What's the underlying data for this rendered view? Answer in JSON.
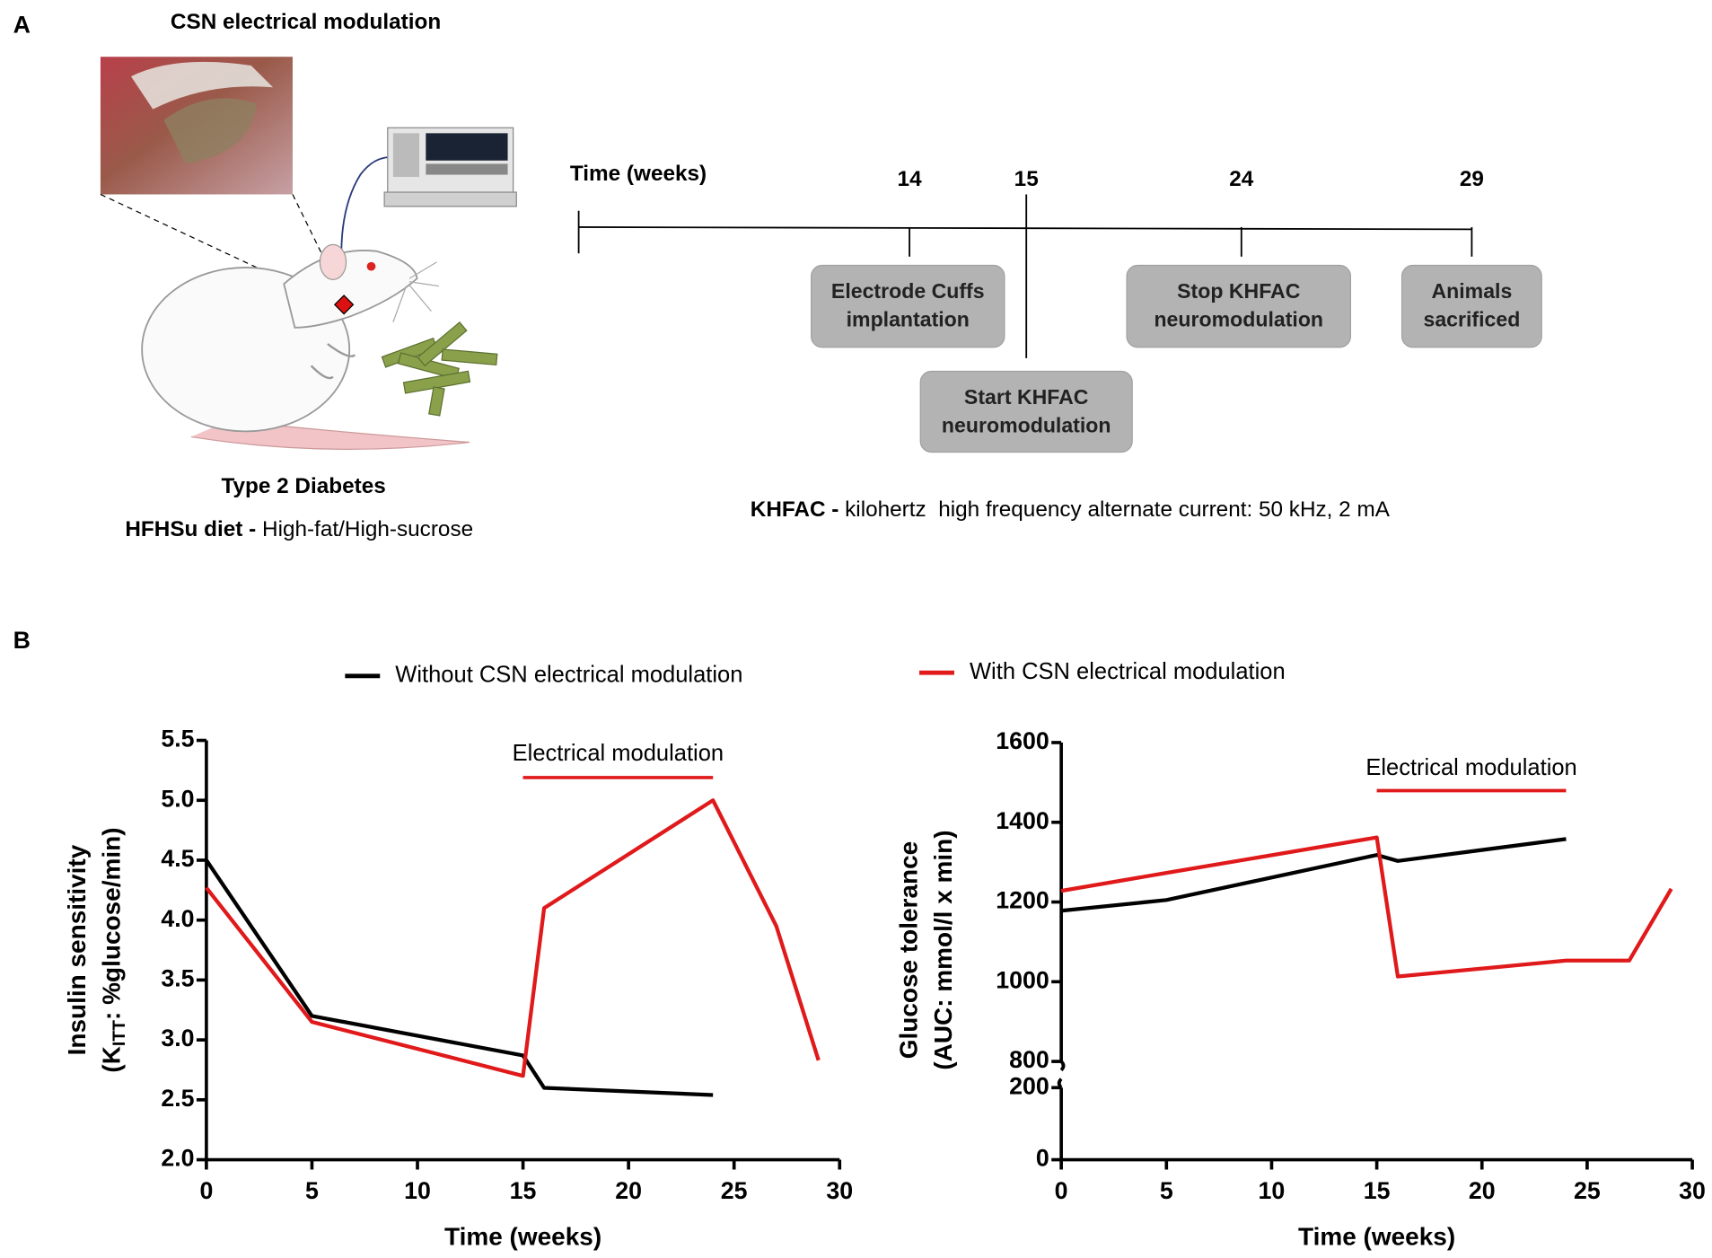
{
  "panel_a": {
    "label": "A",
    "title": "CSN electrical modulation",
    "caption": "Type 2 Diabetes",
    "diet_bold": "HFHSu diet -",
    "diet": "High-fat/High-sucrose",
    "timeline": {
      "title": "Time (weeks)",
      "ticks": [
        14,
        15,
        24,
        29
      ],
      "boxes": [
        [
          "Electrode Cuffs",
          "implantation"
        ],
        [
          "Start KHFAC",
          "neuromodulation"
        ],
        [
          "Stop KHFAC",
          "neuromodulation"
        ],
        [
          "Animals",
          "sacrificed"
        ]
      ]
    },
    "footnote_bold": "KHFAC -",
    "footnote": "kilohertz  high frequency alternate current: 50 kHz, 2 mA"
  },
  "panel_b": {
    "label": "B"
  },
  "chart_data": [
    {
      "type": "line",
      "xlabel": "Time (weeks)",
      "ylabel": "Insulin sensitivity",
      "ylabel_sub": [
        "(K",
        "ITT",
        ": %glucose/min)"
      ],
      "x": [
        0,
        5,
        15,
        16,
        24,
        27,
        29
      ],
      "series": [
        {
          "name": "Without CSN electrical modulation",
          "color": "#000000",
          "values": [
            4.5,
            3.2,
            2.87,
            2.6,
            2.54,
            null,
            null
          ]
        },
        {
          "name": "With CSN electrical modulation",
          "color": "#e0191b",
          "values": [
            4.27,
            3.15,
            2.7,
            4.1,
            5.0,
            3.95,
            2.83
          ]
        }
      ],
      "xlim": [
        0,
        30
      ],
      "xticks": [
        0,
        5,
        10,
        15,
        20,
        25,
        30
      ],
      "ylim": [
        2.0,
        5.5
      ],
      "yticks": [
        {
          "value": 2,
          "label": "2.0"
        },
        2.5,
        {
          "value": 3,
          "label": "3.0"
        },
        3.5,
        {
          "value": 4,
          "label": "4.0"
        },
        4.5,
        {
          "value": 5,
          "label": "5.0"
        },
        5.5
      ],
      "annotation": {
        "text": "Electrical modulation",
        "x": [
          15,
          24
        ],
        "color": "#e0191b"
      }
    },
    {
      "type": "line",
      "xlabel": "Time (weeks)",
      "ylabel": "Glucose tolerance",
      "ylabel_sub": [
        "(AUC: mmol/l x min)"
      ],
      "x": [
        0,
        5,
        15,
        16,
        24,
        27,
        29
      ],
      "series": [
        {
          "color": "#000000",
          "values": [
            1178,
            1205,
            1318,
            1303,
            1358,
            null,
            null
          ]
        },
        {
          "color": "#e0191b",
          "values": [
            1228,
            1273,
            1362,
            1013,
            1053,
            1053,
            1233
          ]
        }
      ],
      "xlim": [
        0,
        30
      ],
      "xticks": [
        0,
        5,
        10,
        15,
        20,
        25,
        30
      ],
      "ylim": [
        0,
        1600
      ],
      "ybreak": [
        200,
        800
      ],
      "yticks": [
        0,
        200,
        800,
        1000,
        1200,
        1400,
        1600
      ],
      "annotation": {
        "text": "Electrical modulation",
        "x": [
          15,
          24
        ],
        "color": "#e0191b"
      }
    }
  ]
}
